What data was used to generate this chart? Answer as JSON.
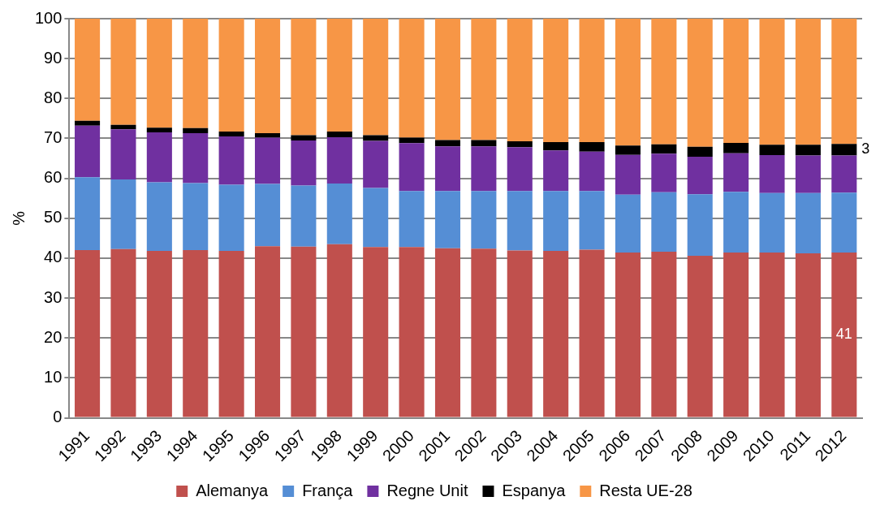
{
  "chart_data": {
    "type": "bar",
    "stacked": true,
    "ylabel": "%",
    "categories": [
      "1991",
      "1992",
      "1993",
      "1994",
      "1995",
      "1996",
      "1997",
      "1998",
      "1999",
      "2000",
      "2001",
      "2002",
      "2003",
      "2004",
      "2005",
      "2006",
      "2007",
      "2008",
      "2009",
      "2010",
      "2011",
      "2012"
    ],
    "series": [
      {
        "name": "Alemanya",
        "color": "#c0504d",
        "values": [
          42,
          42.3,
          41.8,
          42,
          41.8,
          43,
          42.9,
          43.5,
          42.8,
          42.8,
          42.5,
          42.4,
          41.9,
          41.8,
          42.1,
          41.4,
          41.6,
          40.6,
          41.4,
          41.4,
          41.2,
          41.4
        ],
        "value_labels": [
          null,
          null,
          null,
          null,
          null,
          null,
          null,
          null,
          null,
          null,
          null,
          null,
          null,
          null,
          null,
          null,
          null,
          null,
          null,
          null,
          null,
          "41"
        ]
      },
      {
        "name": "França",
        "color": "#558ed5",
        "values": [
          18.3,
          17.4,
          17.2,
          16.8,
          16.6,
          15.6,
          15.3,
          15.2,
          14.8,
          14,
          14.3,
          14.4,
          14.9,
          15,
          14.7,
          14.5,
          14.9,
          15.4,
          15.2,
          14.9,
          15.1,
          15
        ]
      },
      {
        "name": "Regne Unit",
        "color": "#7030a0",
        "values": [
          12.9,
          12.6,
          12.5,
          12.5,
          12.1,
          11.6,
          11.3,
          11.6,
          11.8,
          12,
          11.2,
          11.2,
          11,
          10.2,
          9.9,
          10,
          9.7,
          9.4,
          9.7,
          9.5,
          9.4,
          9.3
        ]
      },
      {
        "name": "Espanya",
        "color": "#000000",
        "values": [
          1.2,
          1.1,
          1.2,
          1.3,
          1.2,
          1.1,
          1.3,
          1.4,
          1.4,
          1.4,
          1.6,
          1.6,
          1.5,
          2.1,
          2.4,
          2.3,
          2.3,
          2.5,
          2.6,
          2.6,
          2.7,
          2.9
        ],
        "value_labels": [
          null,
          null,
          null,
          null,
          null,
          null,
          null,
          null,
          null,
          null,
          null,
          null,
          null,
          null,
          null,
          null,
          null,
          null,
          null,
          null,
          null,
          "3"
        ]
      },
      {
        "name": "Resta UE-28",
        "color": "#f79646",
        "values": [
          25.6,
          26.6,
          27.3,
          27.4,
          28.3,
          28.7,
          29.2,
          28.3,
          29.2,
          29.8,
          30.4,
          30.4,
          30.7,
          30.9,
          30.9,
          31.8,
          31.5,
          32.1,
          31.1,
          31.6,
          31.6,
          31.4
        ]
      }
    ],
    "ylim": [
      0,
      100
    ],
    "yticks": [
      0,
      10,
      20,
      30,
      40,
      50,
      60,
      70,
      80,
      90,
      100
    ],
    "grid": "y",
    "legend": "bottom"
  }
}
